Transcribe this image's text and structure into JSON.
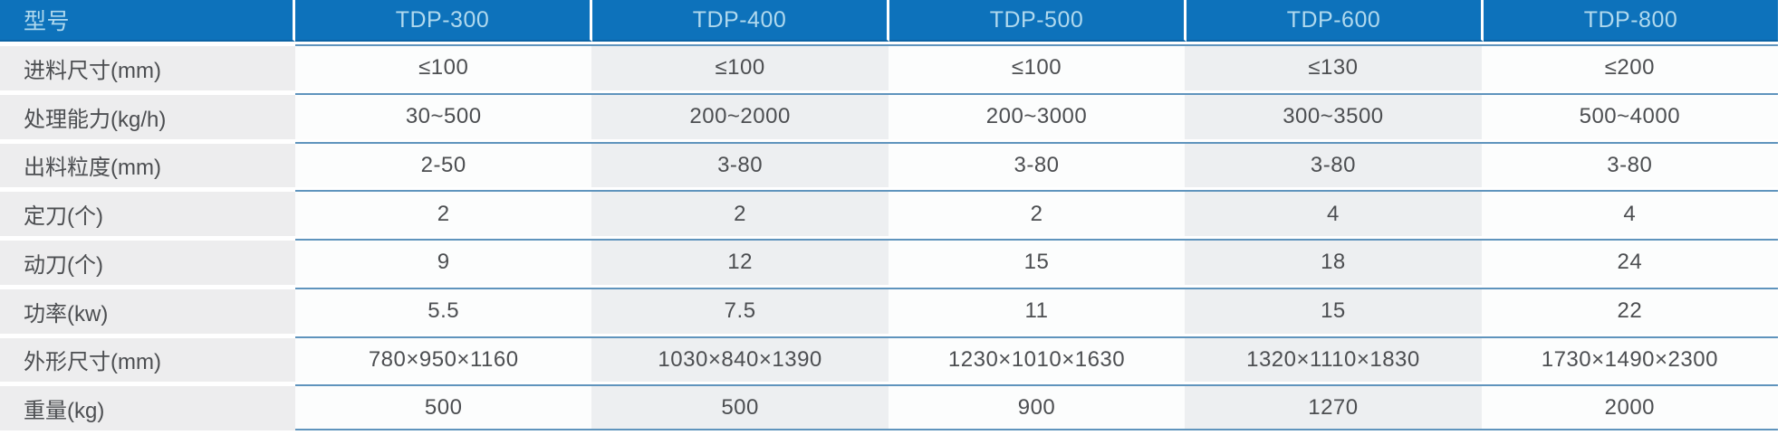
{
  "colors": {
    "header_bg": "#0d72bb",
    "header_edge": "#0b63a4",
    "header_text": "#b0d9ee",
    "label_column_bg": "#ededee",
    "column_light_bg": "#fcfdfd",
    "column_dim_bg": "#edeff1",
    "row_separator_line": "#5f94bd",
    "body_text": "#4c4e51",
    "page_bg": "#ffffff"
  },
  "table": {
    "header": {
      "label": "型号",
      "models": [
        "TDP-300",
        "TDP-400",
        "TDP-500",
        "TDP-600",
        "TDP-800"
      ]
    },
    "rows": [
      {
        "label": "进料尺寸(mm)",
        "values": [
          "≤100",
          "≤100",
          "≤100",
          "≤130",
          "≤200"
        ]
      },
      {
        "label": "处理能力(kg/h)",
        "values": [
          "30~500",
          "200~2000",
          "200~3000",
          "300~3500",
          "500~4000"
        ]
      },
      {
        "label": "出料粒度(mm)",
        "values": [
          "2-50",
          "3-80",
          "3-80",
          "3-80",
          "3-80"
        ]
      },
      {
        "label": "定刀(个)",
        "values": [
          "2",
          "2",
          "2",
          "4",
          "4"
        ]
      },
      {
        "label": "动刀(个)",
        "values": [
          "9",
          "12",
          "15",
          "18",
          "24"
        ]
      },
      {
        "label": "功率(kw)",
        "values": [
          "5.5",
          "7.5",
          "11",
          "15",
          "22"
        ]
      },
      {
        "label": "外形尺寸(mm)",
        "values": [
          "780×950×1160",
          "1030×840×1390",
          "1230×1010×1630",
          "1320×1110×1830",
          "1730×1490×2300"
        ]
      },
      {
        "label": "重量(kg)",
        "values": [
          "500",
          "500",
          "900",
          "1270",
          "2000"
        ]
      }
    ]
  }
}
